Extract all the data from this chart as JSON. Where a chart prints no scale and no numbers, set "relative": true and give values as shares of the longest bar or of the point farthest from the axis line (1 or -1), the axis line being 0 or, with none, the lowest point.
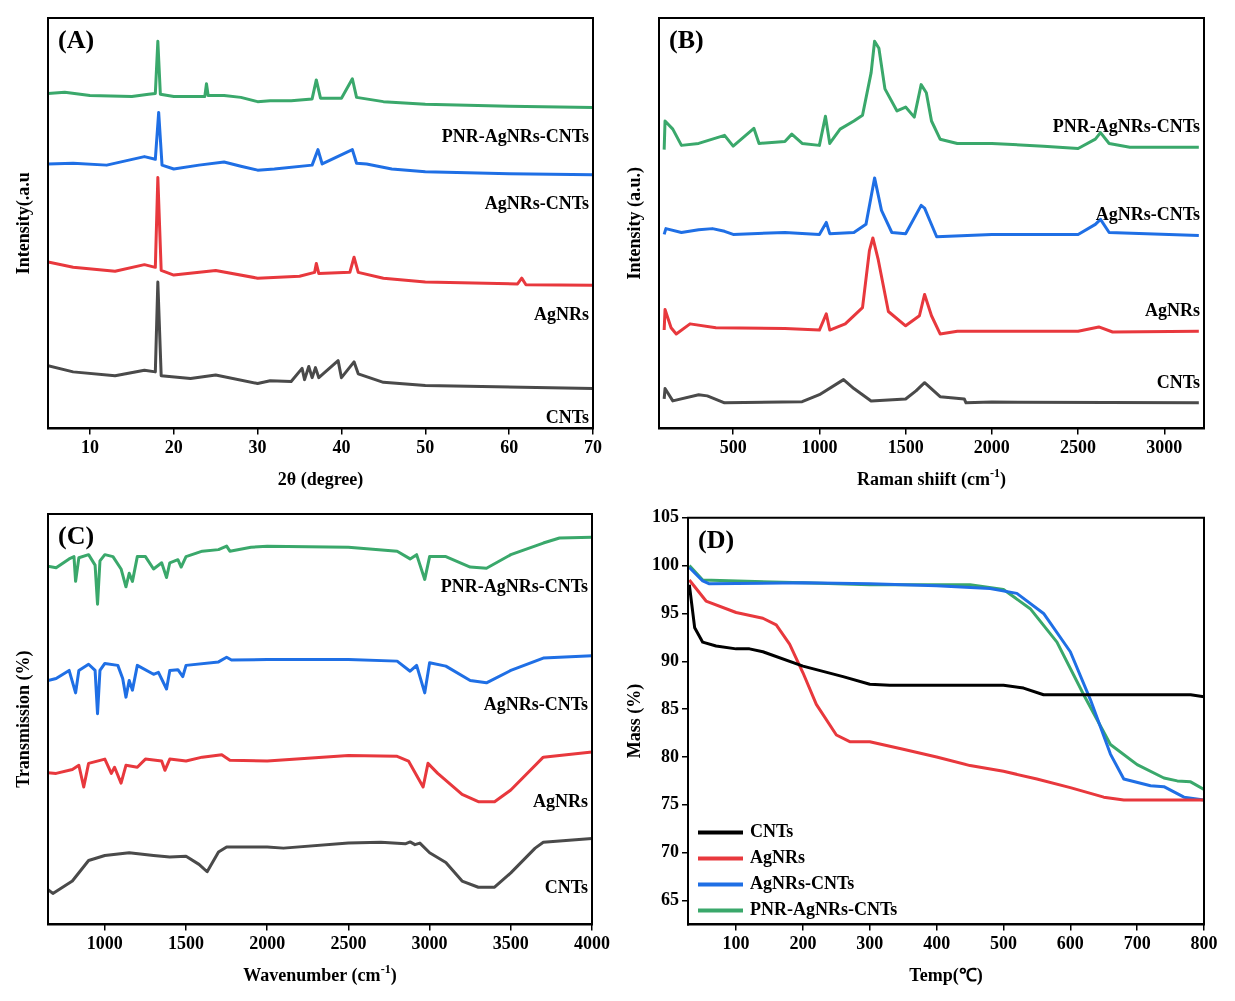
{
  "chart_data": [
    {
      "type": "line",
      "title": "(A)",
      "xlabel": "2θ (degree)",
      "ylabel": "Intensity(.a.u",
      "relative": true,
      "xlim": [
        5,
        70
      ],
      "xticks": [
        10,
        20,
        30,
        40,
        50,
        60,
        70
      ],
      "series": [
        {
          "name": "PNR-AgNRs-CNTs",
          "color": "#3aa86b",
          "x": [
            5,
            7,
            10,
            15,
            17,
            17.8,
            18.1,
            18.4,
            20,
            23.7,
            23.9,
            24.1,
            26,
            28,
            30,
            31.5,
            34,
            36.5,
            37,
            37.5,
            40,
            41.3,
            41.8,
            45,
            50,
            60,
            70
          ],
          "values": [
            0.865,
            0.868,
            0.86,
            0.857,
            0.863,
            0.865,
            1.0,
            0.863,
            0.857,
            0.857,
            0.89,
            0.86,
            0.86,
            0.855,
            0.844,
            0.846,
            0.846,
            0.851,
            0.9,
            0.853,
            0.853,
            0.903,
            0.855,
            0.844,
            0.837,
            0.832,
            0.829
          ]
        },
        {
          "name": "AgNRs-CNTs",
          "color": "#1f6fe5",
          "x": [
            5,
            8,
            12,
            16.5,
            17.8,
            18.2,
            18.6,
            20,
            23,
            26,
            28,
            30,
            32,
            36.5,
            37.2,
            37.7,
            41.3,
            41.8,
            43,
            46,
            50,
            60,
            70
          ],
          "values": [
            0.683,
            0.685,
            0.68,
            0.702,
            0.695,
            0.816,
            0.68,
            0.67,
            0.68,
            0.688,
            0.677,
            0.667,
            0.67,
            0.68,
            0.72,
            0.683,
            0.72,
            0.685,
            0.683,
            0.67,
            0.663,
            0.658,
            0.655
          ]
        },
        {
          "name": "AgNRs",
          "color": "#e8383d",
          "x": [
            5,
            8,
            13,
            16.5,
            17.8,
            18.1,
            18.5,
            20,
            25,
            30,
            35,
            36.8,
            37,
            37.3,
            41,
            41.5,
            42,
            45,
            50,
            61,
            61.5,
            62,
            70
          ],
          "values": [
            0.43,
            0.416,
            0.406,
            0.423,
            0.416,
            0.648,
            0.408,
            0.396,
            0.408,
            0.388,
            0.393,
            0.403,
            0.426,
            0.4,
            0.403,
            0.442,
            0.403,
            0.388,
            0.378,
            0.373,
            0.388,
            0.371,
            0.37
          ]
        },
        {
          "name": "CNTs",
          "color": "#4a4a4a",
          "x": [
            5,
            8,
            13,
            16.5,
            17.8,
            18.1,
            18.5,
            22,
            25,
            30,
            31.5,
            34,
            35.3,
            35.6,
            36.1,
            36.5,
            36.9,
            37.3,
            39.6,
            40,
            41.5,
            42,
            45,
            50,
            70
          ],
          "values": [
            0.162,
            0.146,
            0.136,
            0.15,
            0.146,
            0.378,
            0.136,
            0.129,
            0.138,
            0.116,
            0.123,
            0.121,
            0.155,
            0.126,
            0.16,
            0.131,
            0.157,
            0.131,
            0.175,
            0.131,
            0.172,
            0.141,
            0.119,
            0.111,
            0.103
          ]
        }
      ]
    },
    {
      "type": "line",
      "title": "(B)",
      "xlabel": "Raman shiift (cm$^{-1}$)",
      "ylabel": "Intensity (a.u.)",
      "relative": true,
      "xlim": [
        70,
        3230
      ],
      "xticks": [
        500,
        1000,
        1500,
        2000,
        2500,
        3000
      ],
      "series": [
        {
          "name": "PNR-AgNRs-CNTs",
          "color": "#3aa86b",
          "x": [
            100,
            105,
            150,
            200,
            300,
            450,
            500,
            620,
            650,
            800,
            840,
            900,
            1000,
            1035,
            1060,
            1120,
            1200,
            1250,
            1300,
            1320,
            1345,
            1380,
            1450,
            1500,
            1550,
            1590,
            1620,
            1650,
            1700,
            1800,
            2000,
            2300,
            2500,
            2600,
            2630,
            2680,
            2800,
            3000,
            3200
          ],
          "values": [
            0.72,
            0.794,
            0.773,
            0.731,
            0.736,
            0.757,
            0.729,
            0.775,
            0.736,
            0.741,
            0.76,
            0.736,
            0.731,
            0.806,
            0.736,
            0.773,
            0.794,
            0.809,
            0.919,
            1.0,
            0.982,
            0.877,
            0.82,
            0.83,
            0.804,
            0.888,
            0.867,
            0.794,
            0.747,
            0.736,
            0.736,
            0.729,
            0.723,
            0.747,
            0.764,
            0.736,
            0.726,
            0.726,
            0.726
          ]
        },
        {
          "name": "AgNRs-CNTs",
          "color": "#1f6fe5",
          "x": [
            100,
            110,
            200,
            300,
            380,
            450,
            500,
            800,
            1000,
            1040,
            1060,
            1200,
            1270,
            1320,
            1360,
            1420,
            1500,
            1590,
            1610,
            1640,
            1680,
            2000,
            2500,
            2600,
            2630,
            2680,
            3200
          ],
          "values": [
            0.501,
            0.516,
            0.506,
            0.513,
            0.516,
            0.509,
            0.501,
            0.506,
            0.501,
            0.532,
            0.503,
            0.506,
            0.527,
            0.647,
            0.563,
            0.506,
            0.503,
            0.576,
            0.569,
            0.537,
            0.495,
            0.501,
            0.501,
            0.527,
            0.54,
            0.506,
            0.498
          ]
        },
        {
          "name": "AgNRs",
          "color": "#e8383d",
          "x": [
            100,
            105,
            140,
            170,
            250,
            400,
            800,
            1000,
            1040,
            1060,
            1150,
            1250,
            1290,
            1310,
            1340,
            1400,
            1500,
            1580,
            1610,
            1650,
            1700,
            1800,
            2500,
            2620,
            2700,
            3200
          ],
          "values": [
            0.254,
            0.307,
            0.26,
            0.244,
            0.27,
            0.26,
            0.258,
            0.254,
            0.296,
            0.254,
            0.27,
            0.312,
            0.459,
            0.492,
            0.438,
            0.302,
            0.265,
            0.291,
            0.346,
            0.291,
            0.244,
            0.251,
            0.251,
            0.262,
            0.249,
            0.251
          ]
        },
        {
          "name": "CNTs",
          "color": "#4a4a4a",
          "x": [
            100,
            105,
            150,
            300,
            350,
            450,
            900,
            1000,
            1140,
            1200,
            1300,
            1500,
            1560,
            1610,
            1700,
            1840,
            1850,
            2000,
            3200
          ],
          "values": [
            0.076,
            0.103,
            0.071,
            0.087,
            0.084,
            0.066,
            0.069,
            0.087,
            0.126,
            0.103,
            0.071,
            0.076,
            0.097,
            0.118,
            0.082,
            0.076,
            0.066,
            0.068,
            0.066
          ]
        }
      ]
    },
    {
      "type": "line",
      "title": "(C)",
      "xlabel": "Wavenumber (cm$^{-1}$)",
      "ylabel": "Transmission (%)",
      "relative": true,
      "xlim": [
        650,
        4000
      ],
      "xticks": [
        1000,
        1500,
        2000,
        2500,
        3000,
        3500,
        4000
      ],
      "series": [
        {
          "name": "PNR-AgNRs-CNTs",
          "color": "#3aa86b",
          "x": [
            650,
            700,
            780,
            810,
            820,
            840,
            900,
            940,
            955,
            970,
            1000,
            1050,
            1100,
            1130,
            1150,
            1170,
            1200,
            1250,
            1300,
            1350,
            1380,
            1400,
            1450,
            1470,
            1500,
            1600,
            1700,
            1750,
            1770,
            1900,
            2000,
            2500,
            2800,
            2880,
            2920,
            2970,
            3000,
            3100,
            3250,
            3350,
            3500,
            3700,
            3800,
            4000
          ],
          "values": [
            0.925,
            0.921,
            0.944,
            0.95,
            0.886,
            0.947,
            0.955,
            0.928,
            0.827,
            0.939,
            0.955,
            0.95,
            0.918,
            0.872,
            0.907,
            0.886,
            0.95,
            0.95,
            0.918,
            0.934,
            0.896,
            0.934,
            0.942,
            0.923,
            0.95,
            0.964,
            0.968,
            0.977,
            0.964,
            0.974,
            0.977,
            0.974,
            0.964,
            0.944,
            0.955,
            0.891,
            0.95,
            0.95,
            0.923,
            0.92,
            0.955,
            0.985,
            0.998,
            1.0
          ]
        },
        {
          "name": "AgNRs-CNTs",
          "color": "#1f6fe5",
          "x": [
            650,
            700,
            780,
            820,
            840,
            900,
            940,
            955,
            970,
            1000,
            1080,
            1110,
            1130,
            1150,
            1170,
            1200,
            1300,
            1330,
            1380,
            1400,
            1450,
            1480,
            1500,
            1700,
            1750,
            1780,
            2000,
            2500,
            2800,
            2880,
            2920,
            2970,
            3000,
            3100,
            3250,
            3350,
            3500,
            3700,
            4000
          ],
          "values": [
            0.63,
            0.635,
            0.656,
            0.598,
            0.656,
            0.672,
            0.656,
            0.544,
            0.656,
            0.674,
            0.669,
            0.635,
            0.587,
            0.63,
            0.605,
            0.669,
            0.646,
            0.651,
            0.608,
            0.656,
            0.658,
            0.64,
            0.669,
            0.678,
            0.69,
            0.683,
            0.684,
            0.684,
            0.68,
            0.654,
            0.669,
            0.598,
            0.676,
            0.667,
            0.63,
            0.624,
            0.656,
            0.688,
            0.694
          ]
        },
        {
          "name": "AgNRs",
          "color": "#e8383d",
          "x": [
            650,
            700,
            800,
            840,
            870,
            900,
            1000,
            1040,
            1060,
            1100,
            1130,
            1200,
            1250,
            1350,
            1370,
            1400,
            1500,
            1600,
            1720,
            1770,
            2000,
            2500,
            2800,
            2870,
            2960,
            2990,
            3050,
            3200,
            3300,
            3400,
            3500,
            3700,
            4000
          ],
          "values": [
            0.392,
            0.39,
            0.4,
            0.411,
            0.355,
            0.416,
            0.427,
            0.39,
            0.406,
            0.365,
            0.411,
            0.406,
            0.427,
            0.422,
            0.398,
            0.427,
            0.422,
            0.432,
            0.438,
            0.424,
            0.422,
            0.436,
            0.434,
            0.422,
            0.355,
            0.416,
            0.39,
            0.336,
            0.317,
            0.317,
            0.347,
            0.432,
            0.445
          ]
        },
        {
          "name": "CNTs",
          "color": "#4a4a4a",
          "x": [
            650,
            680,
            800,
            900,
            1000,
            1150,
            1300,
            1400,
            1500,
            1580,
            1630,
            1700,
            1750,
            2000,
            2100,
            2500,
            2700,
            2850,
            2880,
            2910,
            2940,
            3000,
            3100,
            3200,
            3300,
            3400,
            3500,
            3650,
            3700,
            4000
          ],
          "values": [
            0.09,
            0.08,
            0.112,
            0.165,
            0.178,
            0.185,
            0.178,
            0.174,
            0.176,
            0.155,
            0.136,
            0.187,
            0.2,
            0.2,
            0.197,
            0.21,
            0.212,
            0.208,
            0.213,
            0.206,
            0.21,
            0.185,
            0.16,
            0.112,
            0.096,
            0.096,
            0.133,
            0.197,
            0.212,
            0.222
          ]
        }
      ]
    },
    {
      "type": "line",
      "title": "(D)",
      "xlabel": "Temp(℃)",
      "ylabel": "Mass (%)",
      "xlim": [
        28,
        800
      ],
      "xticks": [
        100,
        200,
        300,
        400,
        500,
        600,
        700,
        800
      ],
      "ylim": [
        62.5,
        105
      ],
      "yticks": [
        65,
        70,
        75,
        80,
        85,
        90,
        95,
        100,
        105
      ],
      "legend": "bottom left",
      "series": [
        {
          "name": "CNTs",
          "color": "#000000",
          "x": [
            30,
            38,
            50,
            70,
            100,
            120,
            140,
            200,
            260,
            300,
            330,
            500,
            530,
            560,
            780,
            800
          ],
          "values": [
            98,
            93.5,
            92,
            91.6,
            91.3,
            91.3,
            91,
            89.5,
            88.4,
            87.6,
            87.5,
            87.5,
            87.2,
            86.5,
            86.5,
            86.3
          ]
        },
        {
          "name": "AgNRs",
          "color": "#e8383d",
          "x": [
            30,
            55,
            100,
            140,
            160,
            180,
            200,
            220,
            250,
            270,
            300,
            350,
            400,
            450,
            500,
            550,
            600,
            650,
            680,
            700,
            800
          ],
          "values": [
            98.5,
            96.3,
            95.1,
            94.5,
            93.8,
            91.8,
            88.8,
            85.5,
            82.3,
            81.6,
            81.6,
            80.8,
            80,
            79.1,
            78.5,
            77.7,
            76.8,
            75.8,
            75.5,
            75.5,
            75.5
          ]
        },
        {
          "name": "AgNRs-CNTs",
          "color": "#1f6fe5",
          "x": [
            30,
            50,
            60,
            200,
            300,
            400,
            480,
            520,
            560,
            600,
            630,
            660,
            680,
            720,
            740,
            770,
            800
          ],
          "values": [
            99.8,
            98.4,
            98.1,
            98.2,
            98.1,
            97.9,
            97.6,
            97.1,
            95,
            91,
            86,
            80.3,
            77.7,
            77,
            76.9,
            75.8,
            75.5
          ]
        },
        {
          "name": "PNR-AgNRs-CNTs",
          "color": "#3aa86b",
          "x": [
            30,
            50,
            200,
            300,
            450,
            500,
            540,
            580,
            620,
            660,
            700,
            740,
            760,
            780,
            800
          ],
          "values": [
            100,
            98.5,
            98.2,
            98,
            98,
            97.5,
            95.5,
            92,
            86.5,
            81.3,
            79.2,
            77.8,
            77.5,
            77.4,
            76.6
          ]
        }
      ]
    }
  ]
}
